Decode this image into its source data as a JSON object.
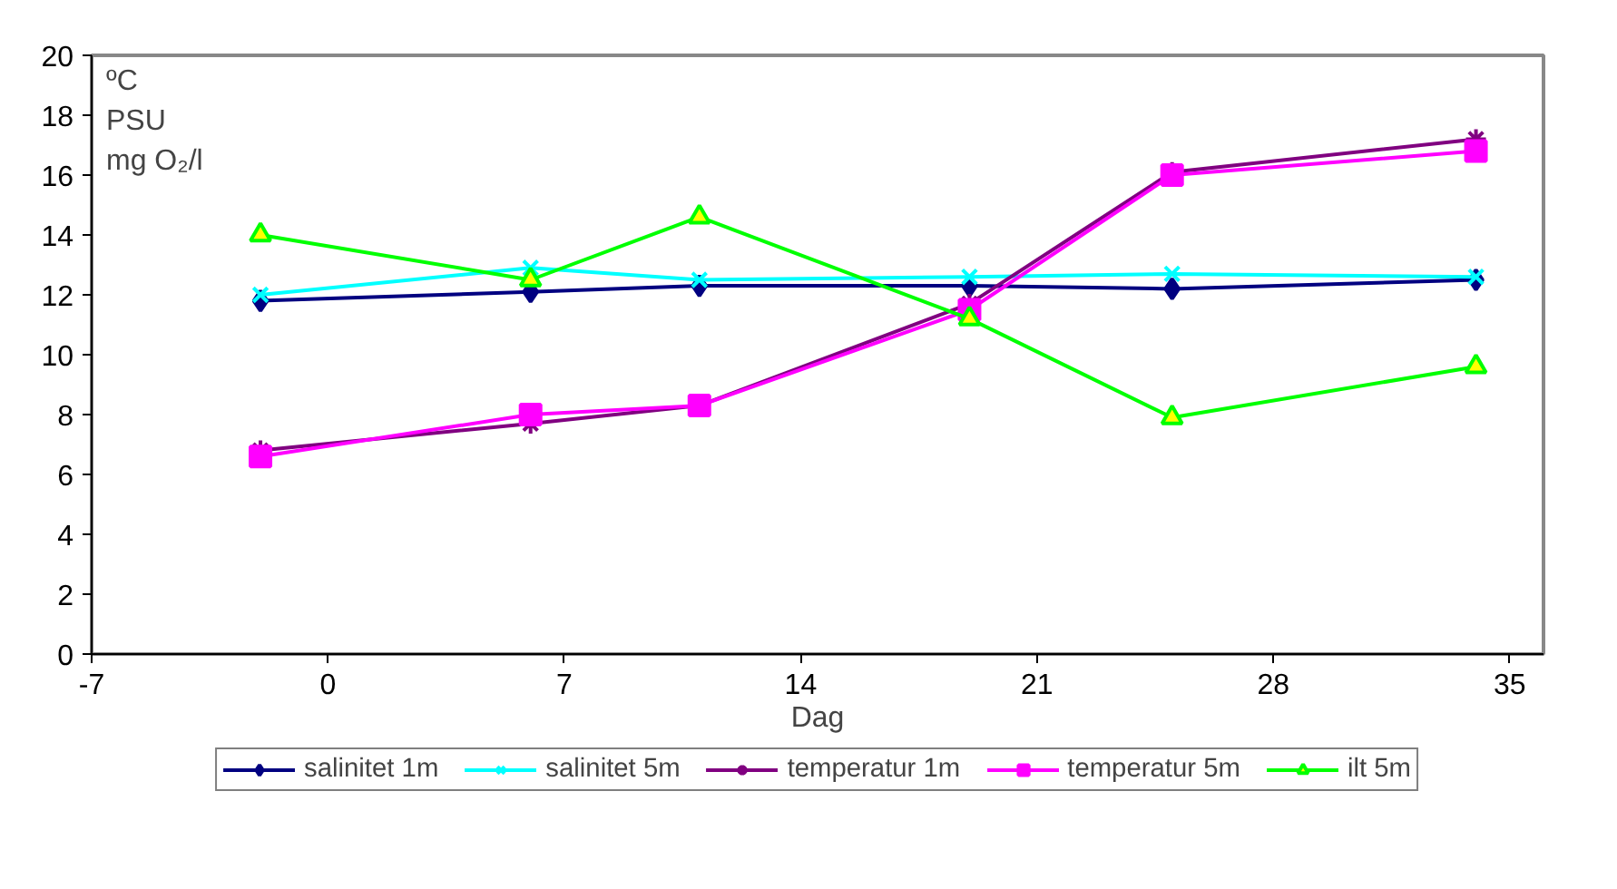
{
  "chart_data": {
    "type": "line",
    "xlabel": "Dag",
    "annotations": [
      "ºC",
      "PSU",
      "mg O₂/l"
    ],
    "x": [
      -2,
      6,
      11,
      19,
      25,
      34
    ],
    "xlim": [
      -7,
      36
    ],
    "xticks": [
      -7,
      0,
      7,
      14,
      21,
      28,
      35
    ],
    "ylim": [
      0,
      20
    ],
    "yticks": [
      0,
      2,
      4,
      6,
      8,
      10,
      12,
      14,
      16,
      18,
      20
    ],
    "grid": false,
    "legend": "bottom",
    "series": [
      {
        "name": "salinitet 1m",
        "color": "#000080",
        "marker": "diamond",
        "values": [
          11.8,
          12.1,
          12.3,
          12.3,
          12.2,
          12.5
        ]
      },
      {
        "name": "salinitet 5m",
        "color": "#00ffff",
        "marker": "x",
        "values": [
          12.0,
          12.9,
          12.5,
          12.6,
          12.7,
          12.6
        ]
      },
      {
        "name": "temperatur 1m",
        "color": "#800080",
        "marker": "cross",
        "values": [
          6.8,
          7.7,
          8.3,
          11.7,
          16.1,
          17.2
        ]
      },
      {
        "name": "temperatur 5m",
        "color": "#ff00ff",
        "marker": "square",
        "values": [
          6.6,
          8.0,
          8.3,
          11.5,
          16.0,
          16.8
        ]
      },
      {
        "name": "ilt 5m",
        "color": "#00ff00",
        "marker": "triangle",
        "values": [
          14.0,
          12.5,
          14.6,
          11.2,
          7.9,
          9.6
        ]
      }
    ]
  }
}
